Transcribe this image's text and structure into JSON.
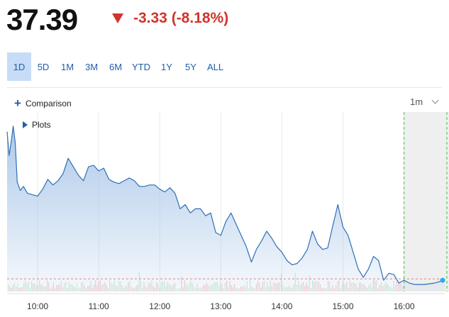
{
  "quote": {
    "price": "37.39",
    "change": "-3.33 (-8.18%)",
    "direction_icon": "triangle-down-icon",
    "change_color": "#d0342c"
  },
  "range_tabs": [
    {
      "label": "1D",
      "active": true
    },
    {
      "label": "5D",
      "active": false
    },
    {
      "label": "1M",
      "active": false
    },
    {
      "label": "3M",
      "active": false
    },
    {
      "label": "6M",
      "active": false
    },
    {
      "label": "YTD",
      "active": false
    },
    {
      "label": "1Y",
      "active": false
    },
    {
      "label": "5Y",
      "active": false
    },
    {
      "label": "ALL",
      "active": false
    }
  ],
  "toolbar": {
    "comparison_label": "Comparison",
    "interval_label": "1m",
    "plots_label": "Plots"
  },
  "colors": {
    "accent": "#1f5fa8",
    "line": "#2f6fb5",
    "area_top": "#a9c6e8",
    "marker": "#2ea8f0",
    "after_hours_line": "#3cc43c"
  },
  "chart_data": {
    "type": "area",
    "x_tick_labels": [
      "10:00",
      "11:00",
      "12:00",
      "13:00",
      "14:00",
      "15:00",
      "16:00"
    ],
    "x_start": "09:30",
    "x_end": "16:40",
    "series": [
      {
        "points": [
          [
            "09:30",
            40.5
          ],
          [
            "09:32",
            39.65
          ],
          [
            "09:34",
            40.12
          ],
          [
            "09:36",
            40.7
          ],
          [
            "09:38",
            40.1
          ],
          [
            "09:40",
            38.7
          ],
          [
            "09:43",
            38.4
          ],
          [
            "09:46",
            38.55
          ],
          [
            "09:50",
            38.3
          ],
          [
            "09:55",
            38.25
          ],
          [
            "10:00",
            38.2
          ],
          [
            "10:05",
            38.45
          ],
          [
            "10:10",
            38.8
          ],
          [
            "10:15",
            38.6
          ],
          [
            "10:20",
            38.75
          ],
          [
            "10:25",
            39.0
          ],
          [
            "10:30",
            39.55
          ],
          [
            "10:35",
            39.25
          ],
          [
            "10:40",
            38.95
          ],
          [
            "10:45",
            38.75
          ],
          [
            "10:50",
            39.25
          ],
          [
            "10:55",
            39.3
          ],
          [
            "11:00",
            39.1
          ],
          [
            "11:05",
            39.2
          ],
          [
            "11:10",
            38.8
          ],
          [
            "11:15",
            38.7
          ],
          [
            "11:20",
            38.65
          ],
          [
            "11:25",
            38.75
          ],
          [
            "11:30",
            38.85
          ],
          [
            "11:35",
            38.75
          ],
          [
            "11:40",
            38.55
          ],
          [
            "11:45",
            38.55
          ],
          [
            "11:50",
            38.6
          ],
          [
            "11:55",
            38.6
          ],
          [
            "12:00",
            38.45
          ],
          [
            "12:05",
            38.35
          ],
          [
            "12:10",
            38.5
          ],
          [
            "12:15",
            38.3
          ],
          [
            "12:20",
            37.75
          ],
          [
            "12:25",
            37.9
          ],
          [
            "12:30",
            37.6
          ],
          [
            "12:35",
            37.75
          ],
          [
            "12:40",
            37.75
          ],
          [
            "12:45",
            37.5
          ],
          [
            "12:50",
            37.6
          ],
          [
            "12:55",
            36.9
          ],
          [
            "13:00",
            36.8
          ],
          [
            "13:05",
            37.3
          ],
          [
            "13:10",
            37.6
          ],
          [
            "13:15",
            37.2
          ],
          [
            "13:20",
            36.8
          ],
          [
            "13:25",
            36.4
          ],
          [
            "13:30",
            35.85
          ],
          [
            "13:35",
            36.3
          ],
          [
            "13:40",
            36.6
          ],
          [
            "13:45",
            36.95
          ],
          [
            "13:50",
            36.7
          ],
          [
            "13:55",
            36.4
          ],
          [
            "14:00",
            36.2
          ],
          [
            "14:05",
            35.9
          ],
          [
            "14:10",
            35.75
          ],
          [
            "14:15",
            35.8
          ],
          [
            "14:20",
            36.0
          ],
          [
            "14:25",
            36.3
          ],
          [
            "14:30",
            36.95
          ],
          [
            "14:35",
            36.5
          ],
          [
            "14:40",
            36.3
          ],
          [
            "14:45",
            36.35
          ],
          [
            "14:50",
            37.15
          ],
          [
            "14:55",
            37.9
          ],
          [
            "15:00",
            37.1
          ],
          [
            "15:05",
            36.8
          ],
          [
            "15:10",
            36.2
          ],
          [
            "15:15",
            35.6
          ],
          [
            "15:20",
            35.3
          ],
          [
            "15:25",
            35.6
          ],
          [
            "15:30",
            36.05
          ],
          [
            "15:35",
            35.9
          ],
          [
            "15:40",
            35.2
          ],
          [
            "15:45",
            35.45
          ],
          [
            "15:50",
            35.4
          ],
          [
            "15:55",
            35.1
          ],
          [
            "16:00",
            35.2
          ],
          [
            "16:05",
            35.1
          ],
          [
            "16:10",
            35.05
          ],
          [
            "16:20",
            35.05
          ],
          [
            "16:30",
            35.1
          ],
          [
            "16:40",
            35.2
          ]
        ]
      }
    ],
    "prev_close": 35.25,
    "ylim": [
      34.8,
      41.2
    ],
    "after_hours_start": "16:00",
    "after_hours_end": "16:40",
    "volume_baseline": "red-green",
    "grid": "vertical"
  }
}
